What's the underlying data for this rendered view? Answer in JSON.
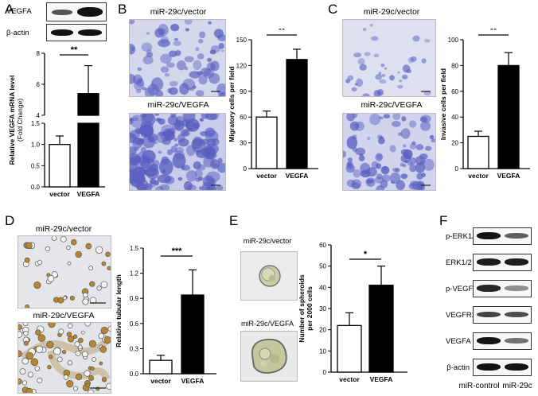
{
  "panels": {
    "A": {
      "letter": "A",
      "blot_labels": [
        "VEGFA",
        "β-actin"
      ],
      "chart_data": {
        "type": "bar",
        "categories": [
          "vector",
          "VEGFA"
        ],
        "values": [
          1.0,
          5.4
        ],
        "errors": [
          0.2,
          1.8
        ],
        "ylabel": "Relative VEGFA mRNA level\n(Fold Change)",
        "yticks": [
          0.0,
          0.5,
          1.0,
          1.5,
          4,
          6,
          8
        ],
        "axis_break": [
          1.5,
          4
        ],
        "significance": "**"
      }
    },
    "B": {
      "letter": "B",
      "image_captions": [
        "miR-29c/vector",
        "miR-29c/VEGFA"
      ],
      "chart_data": {
        "type": "bar",
        "categories": [
          "vector",
          "VEGFA"
        ],
        "values": [
          60,
          127
        ],
        "errors": [
          7,
          12
        ],
        "ylabel": "Migratory cells per field",
        "ylim": [
          0,
          150
        ],
        "yticks": [
          0,
          30,
          60,
          90,
          120,
          150
        ],
        "significance": "**"
      }
    },
    "C": {
      "letter": "C",
      "image_captions": [
        "miR-29c/vector",
        "miR-29c/VEGFA"
      ],
      "chart_data": {
        "type": "bar",
        "categories": [
          "vector",
          "VEGFA"
        ],
        "values": [
          25,
          80
        ],
        "errors": [
          4,
          10
        ],
        "ylabel": "Invasive cells per field",
        "ylim": [
          0,
          100
        ],
        "yticks": [
          0,
          20,
          40,
          60,
          80,
          100
        ],
        "significance": "**"
      }
    },
    "D": {
      "letter": "D",
      "image_captions": [
        "miR-29c/vector",
        "miR-29c/VEGFA"
      ],
      "chart_data": {
        "type": "bar",
        "categories": [
          "vector",
          "VEGFA"
        ],
        "values": [
          0.16,
          0.94
        ],
        "errors": [
          0.06,
          0.3
        ],
        "ylabel": "Relative tubular length",
        "ylim": [
          0,
          1.5
        ],
        "yticks": [
          0.0,
          0.3,
          0.6,
          0.9,
          1.2,
          1.5
        ],
        "significance": "***"
      }
    },
    "E": {
      "letter": "E",
      "image_captions": [
        "miR-29c/vector",
        "miR-29c/VEGFA"
      ],
      "chart_data": {
        "type": "bar",
        "categories": [
          "vector",
          "VEGFA"
        ],
        "values": [
          22,
          41
        ],
        "errors": [
          6,
          9
        ],
        "ylabel": "Number of spheroids\nper 2000 cells",
        "ylim": [
          0,
          60
        ],
        "yticks": [
          0,
          10,
          20,
          30,
          40,
          50,
          60
        ],
        "significance": "*"
      }
    },
    "F": {
      "letter": "F",
      "blot_labels": [
        "p-ERK1/2",
        "ERK1/2",
        "p-VEGFR2",
        "VEGFR2",
        "VEGFA",
        "β-actin"
      ],
      "lane_labels": [
        "miR-control",
        "miR-29c"
      ]
    }
  },
  "colors": {
    "bar_control": "#ffffff",
    "bar_treated": "#000000",
    "stain": "#5a5fc0"
  }
}
